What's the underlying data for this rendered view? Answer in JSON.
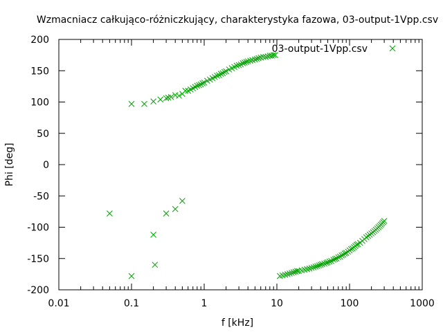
{
  "chart_data": {
    "type": "scatter",
    "title": "Wzmacniacz całkująco-różniczkujący, charakterystyka fazowa, 03-output-1Vpp.csv",
    "xlabel": "f [kHz]",
    "ylabel": "Phi [deg]",
    "x_scale": "log",
    "xlim": [
      0.01,
      1000
    ],
    "ylim": [
      -200,
      200
    ],
    "x_ticks": [
      {
        "value": 0.01,
        "label": "0.01"
      },
      {
        "value": 0.1,
        "label": "0.1"
      },
      {
        "value": 1,
        "label": "1"
      },
      {
        "value": 10,
        "label": "10"
      },
      {
        "value": 100,
        "label": "100"
      },
      {
        "value": 1000,
        "label": "1000"
      }
    ],
    "y_ticks": [
      {
        "value": -200,
        "label": "-200"
      },
      {
        "value": -150,
        "label": "-150"
      },
      {
        "value": -100,
        "label": "-100"
      },
      {
        "value": -50,
        "label": "-50"
      },
      {
        "value": 0,
        "label": "0"
      },
      {
        "value": 50,
        "label": "50"
      },
      {
        "value": 100,
        "label": "100"
      },
      {
        "value": 150,
        "label": "150"
      },
      {
        "value": 200,
        "label": "200"
      }
    ],
    "grid": false,
    "legend_position": "top-right",
    "marker": "x",
    "colors": {
      "series": "#00a000",
      "axes": "#000000",
      "background": "#ffffff"
    },
    "series": [
      {
        "name": "03-output-1Vpp.csv",
        "x": [
          0.1,
          0.15,
          0.2,
          0.25,
          0.3,
          0.32,
          0.35,
          0.4,
          0.45,
          0.5,
          0.55,
          0.6,
          0.65,
          0.7,
          0.75,
          0.8,
          0.85,
          0.9,
          0.95,
          1.0,
          1.1,
          1.2,
          1.3,
          1.4,
          1.5,
          1.6,
          1.7,
          1.8,
          1.9,
          2.0,
          2.2,
          2.4,
          2.6,
          2.8,
          3.0,
          3.2,
          3.4,
          3.6,
          3.8,
          4.0,
          4.3,
          4.6,
          5.0,
          5.3,
          5.6,
          6.0,
          6.5,
          7.0,
          7.5,
          8.0,
          8.5,
          9.0,
          9.5,
          0.05,
          0.1,
          0.2,
          0.21,
          0.3,
          0.4,
          0.5,
          11,
          12,
          13,
          14,
          15,
          16,
          17,
          18,
          19,
          20,
          22,
          24,
          26,
          28,
          30,
          32,
          34,
          36,
          38,
          40,
          42,
          45,
          48,
          50,
          53,
          56,
          60,
          63,
          66,
          70,
          74,
          78,
          82,
          86,
          90,
          95,
          100,
          105,
          110,
          115,
          120,
          125,
          130,
          140,
          150,
          160,
          170,
          180,
          190,
          200,
          210,
          220,
          230,
          240,
          250,
          260,
          270,
          280,
          290,
          300
        ],
        "y": [
          97,
          97,
          101,
          104,
          106,
          107,
          108,
          111,
          110,
          113,
          118,
          118,
          120,
          122,
          124,
          126,
          127,
          128,
          130,
          131,
          134,
          136,
          138,
          140,
          142,
          143,
          145,
          146,
          148,
          149,
          152,
          154,
          156,
          158,
          159,
          160,
          162,
          163,
          164,
          165,
          166,
          167,
          168,
          169,
          170,
          171,
          172,
          172,
          173,
          174,
          174,
          175,
          175,
          -78,
          -178,
          -112,
          -160,
          -78,
          -71,
          -58,
          -178,
          -177,
          -176,
          -175,
          -174,
          -173,
          -172,
          -171,
          -170,
          -170,
          -169,
          -168,
          -167,
          -166,
          -165,
          -164,
          -163,
          -162,
          -161,
          -160,
          -159,
          -158,
          -157,
          -156,
          -155,
          -154,
          -152,
          -151,
          -150,
          -148,
          -147,
          -145,
          -144,
          -142,
          -141,
          -139,
          -137,
          -135,
          -134,
          -132,
          -130,
          -128,
          -127,
          -125,
          -122,
          -119,
          -116,
          -114,
          -112,
          -110,
          -108,
          -106,
          -104,
          -102,
          -100,
          -98,
          -96,
          -94,
          -92,
          -90
        ]
      }
    ]
  }
}
